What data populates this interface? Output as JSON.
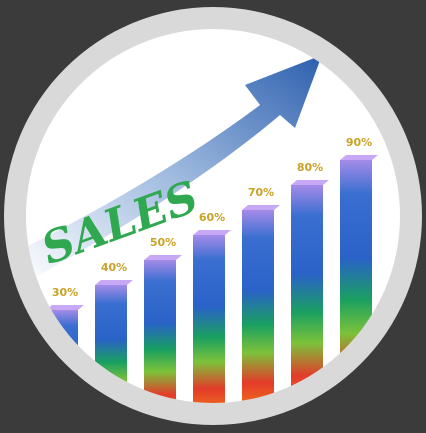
{
  "chart_data": {
    "type": "bar",
    "annotation": "SALES",
    "categories": [
      null,
      null,
      null,
      null,
      null,
      null,
      null
    ],
    "values": [
      30,
      40,
      50,
      60,
      70,
      80,
      90
    ],
    "value_labels": [
      "30%",
      "40%",
      "50%",
      "60%",
      "70%",
      "80%",
      "90%"
    ]
  }
}
